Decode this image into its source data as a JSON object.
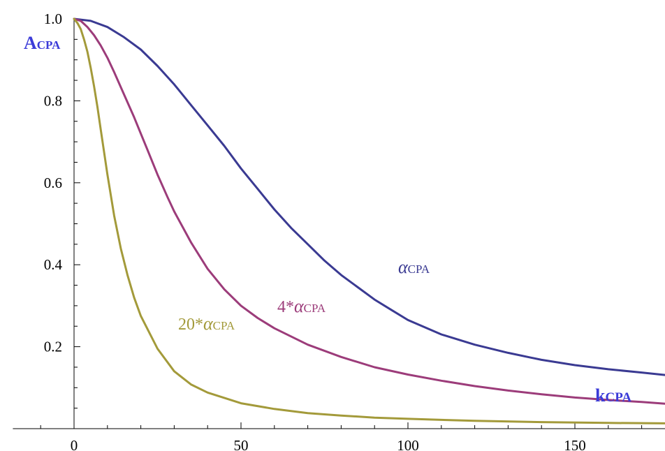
{
  "chart_data": {
    "type": "line",
    "xlabel": "kCPA",
    "ylabel": "ACPA",
    "xlim": [
      -20,
      178
    ],
    "ylim": [
      0,
      1.0
    ],
    "x_ticks": [
      0,
      50,
      100,
      150
    ],
    "x_tick_labels": [
      "0",
      "50",
      "100",
      "150"
    ],
    "y_ticks": [
      0.2,
      0.4,
      0.6,
      0.8,
      1.0
    ],
    "y_tick_labels": [
      "0.2",
      "0.4",
      "0.6",
      "0.8",
      "1.0"
    ],
    "x_minor_step": 10,
    "y_minor_step": 0.05,
    "grid": false,
    "series": [
      {
        "label": "αCPA",
        "label_prefix": "",
        "label_greek": "α",
        "label_sub": "CPA",
        "color": "#3a3a92",
        "x": [
          0,
          5,
          10,
          15,
          20,
          25,
          30,
          35,
          40,
          45,
          50,
          55,
          60,
          65,
          70,
          75,
          80,
          85,
          90,
          95,
          100,
          110,
          120,
          130,
          140,
          150,
          160,
          170,
          178
        ],
        "values": [
          1.0,
          0.995,
          0.98,
          0.955,
          0.925,
          0.885,
          0.84,
          0.79,
          0.74,
          0.69,
          0.635,
          0.585,
          0.535,
          0.49,
          0.45,
          0.41,
          0.375,
          0.345,
          0.315,
          0.29,
          0.265,
          0.23,
          0.205,
          0.185,
          0.168,
          0.155,
          0.145,
          0.137,
          0.131
        ]
      },
      {
        "label": "4*αCPA",
        "label_prefix": "4*",
        "label_greek": "α",
        "label_sub": "CPA",
        "color": "#9c3c7a",
        "x": [
          0,
          2,
          4,
          6,
          8,
          10,
          12,
          15,
          18,
          20,
          22,
          25,
          28,
          30,
          35,
          40,
          45,
          50,
          55,
          60,
          70,
          80,
          90,
          100,
          110,
          120,
          130,
          140,
          150,
          160,
          170,
          178
        ],
        "values": [
          1.0,
          0.995,
          0.98,
          0.96,
          0.935,
          0.905,
          0.87,
          0.815,
          0.76,
          0.72,
          0.68,
          0.62,
          0.565,
          0.53,
          0.455,
          0.39,
          0.34,
          0.3,
          0.27,
          0.245,
          0.205,
          0.175,
          0.15,
          0.132,
          0.117,
          0.104,
          0.093,
          0.084,
          0.076,
          0.07,
          0.065,
          0.061
        ]
      },
      {
        "label": "20*αCPA",
        "label_prefix": "20*",
        "label_greek": "α",
        "label_sub": "CPA",
        "color": "#a39a3a",
        "x": [
          0,
          1,
          2,
          3,
          4,
          5,
          6,
          7,
          8,
          9,
          10,
          12,
          14,
          16,
          18,
          20,
          25,
          30,
          35,
          40,
          50,
          60,
          70,
          80,
          90,
          100,
          120,
          140,
          160,
          178
        ],
        "values": [
          1.0,
          0.99,
          0.975,
          0.95,
          0.92,
          0.88,
          0.835,
          0.785,
          0.73,
          0.675,
          0.62,
          0.52,
          0.44,
          0.375,
          0.32,
          0.275,
          0.195,
          0.14,
          0.108,
          0.088,
          0.062,
          0.048,
          0.038,
          0.032,
          0.027,
          0.024,
          0.019,
          0.016,
          0.014,
          0.013
        ]
      }
    ]
  }
}
